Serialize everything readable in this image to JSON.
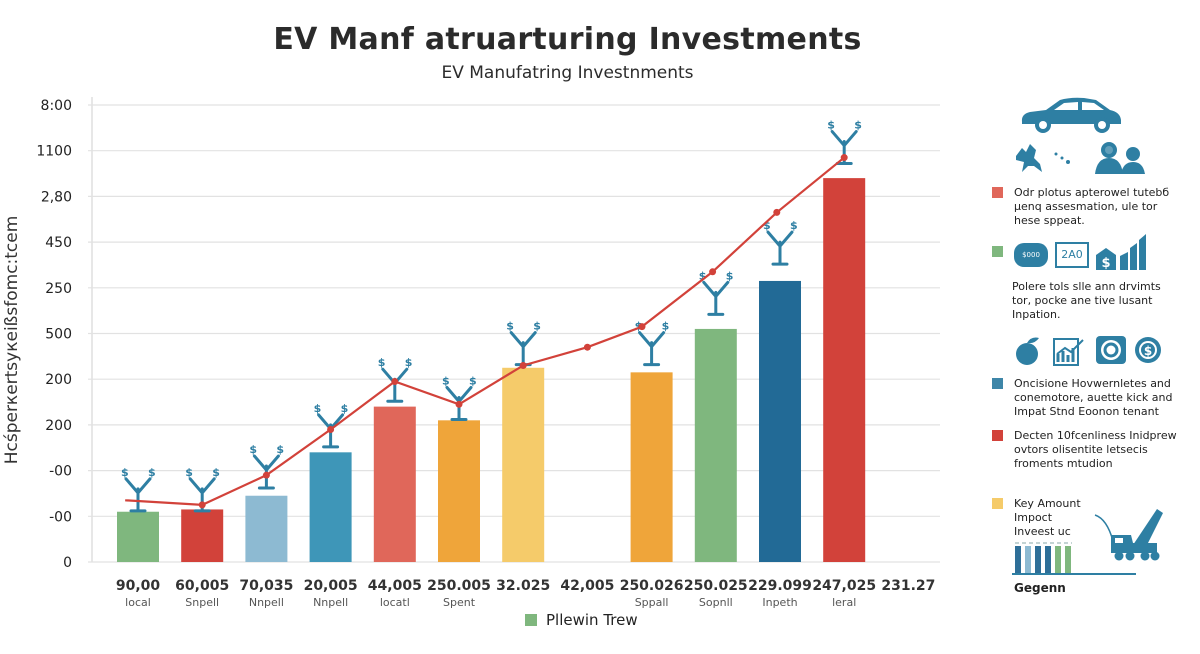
{
  "title": "EV Manf atruarturing Investments",
  "subtitle": "EV Manufatring Investnments",
  "chart_data": {
    "type": "bar",
    "title": "EV Manf atruarturing Investments",
    "subtitle": "EV Manufatring Investnments",
    "ylabel": "Hcśperкertsyкeißsfomc:tcem",
    "xlabel": "",
    "grid": true,
    "yticks": [
      "8:00",
      "1100",
      "2,80",
      "450",
      "250",
      "500",
      "200",
      "200",
      "-00",
      "-00",
      "0"
    ],
    "ylim": [
      0,
      10.5
    ],
    "categories": [
      {
        "value_label": "90,00",
        "sub_label": "local"
      },
      {
        "value_label": "60,005",
        "sub_label": "Snpell"
      },
      {
        "value_label": "70,035",
        "sub_label": "Nnpell"
      },
      {
        "value_label": "20,005",
        "sub_label": "Nnpell"
      },
      {
        "value_label": "44,005",
        "sub_label": "locatl"
      },
      {
        "value_label": "250.005",
        "sub_label": "Spent"
      },
      {
        "value_label": "32.025",
        "sub_label": ""
      },
      {
        "value_label": "42,005",
        "sub_label": ""
      },
      {
        "value_label": "250.026",
        "sub_label": "Sppall"
      },
      {
        "value_label": "250.025",
        "sub_label": "Sopnll"
      },
      {
        "value_label": "229.099",
        "sub_label": "Inpeth"
      },
      {
        "value_label": "247,025",
        "sub_label": "leral"
      },
      {
        "value_label": "231.27",
        "sub_label": ""
      }
    ],
    "bars": [
      {
        "category_index": 0,
        "value": 1.1,
        "color": "#7fb77e"
      },
      {
        "category_index": 1,
        "value": 1.15,
        "color": "#d2423a"
      },
      {
        "category_index": 2,
        "value": 1.45,
        "color": "#8dbad2"
      },
      {
        "category_index": 3,
        "value": 2.4,
        "color": "#3e96b8"
      },
      {
        "category_index": 4,
        "value": 3.4,
        "color": "#e0675a"
      },
      {
        "category_index": 5,
        "value": 3.1,
        "color": "#efa53a"
      },
      {
        "category_index": 6,
        "value": 4.25,
        "color": "#f5cb6a"
      },
      {
        "category_index": 8,
        "value": 4.15,
        "color": "#efa53a"
      },
      {
        "category_index": 9,
        "value": 5.1,
        "color": "#7fb77e"
      },
      {
        "category_index": 10,
        "value": 6.15,
        "color": "#226a96"
      },
      {
        "category_index": 11,
        "value": 8.4,
        "color": "#d2423a"
      }
    ],
    "line_series": {
      "name": "trend",
      "color": "#d2423a",
      "points": [
        {
          "x": -0.2,
          "y": 1.35
        },
        {
          "x": 1,
          "y": 1.25
        },
        {
          "x": 2,
          "y": 1.9
        },
        {
          "x": 3,
          "y": 2.9
        },
        {
          "x": 4,
          "y": 3.95
        },
        {
          "x": 5,
          "y": 3.45
        },
        {
          "x": 6,
          "y": 4.3
        },
        {
          "x": 7,
          "y": 4.7
        },
        {
          "x": 7.85,
          "y": 5.15
        },
        {
          "x": 8.95,
          "y": 6.35
        },
        {
          "x": 9.95,
          "y": 7.65
        },
        {
          "x": 11,
          "y": 8.85
        }
      ]
    },
    "marker_icons": [
      {
        "category_index": 0,
        "y": 1.6
      },
      {
        "category_index": 1,
        "y": 1.6
      },
      {
        "category_index": 2,
        "y": 2.1
      },
      {
        "category_index": 3,
        "y": 3.0
      },
      {
        "category_index": 4,
        "y": 4.0
      },
      {
        "category_index": 5,
        "y": 3.6
      },
      {
        "category_index": 6,
        "y": 4.8
      },
      {
        "category_index": 8,
        "y": 4.8
      },
      {
        "category_index": 9,
        "y": 5.9
      },
      {
        "category_index": 10,
        "y": 7.0
      },
      {
        "category_index": 11,
        "y": 9.2
      }
    ],
    "legend": {
      "position": "bottom",
      "entries": [
        {
          "label": "Pllewin Trew",
          "color": "#7fb77e"
        }
      ]
    }
  },
  "sidebar": {
    "sections": [
      {
        "color": "#e0675a",
        "icons": [
          "car-icon",
          "map-icon",
          "people-icon"
        ],
        "text": "Odr plotus apterowel tutebб µenq assesmation, ule tor hese sppeat."
      },
      {
        "color": "#7fb77e",
        "icons": [
          "chat-bubble-icon",
          "monitor-icon",
          "dollar-house-icon",
          "bar-growth-icon"
        ],
        "icon_text": [
          "$000",
          "2A0"
        ],
        "text": "Polere tols slle ann drvimts tor, pocke ane tive lusant Inpation."
      },
      {
        "color": "#3e86a8",
        "icons": [
          "apple-icon",
          "chart-icon",
          "camera-icon",
          "dollar-coin-icon"
        ],
        "text": "Oncisione Hovwernletes and conemotore, auette kick and Impat Stnd Eoonon tenant"
      },
      {
        "color": "#d2423a",
        "text": "Decten 10fcenliness Inidprew ovtors olisentite letsecis froments mtudion"
      },
      {
        "color": "#f5cb6a",
        "text": "Key Amount Impoct Inveest uc",
        "icons": [
          "mini-bars-icon",
          "crane-truck-icon"
        ],
        "footer": "Gegenn"
      }
    ]
  }
}
